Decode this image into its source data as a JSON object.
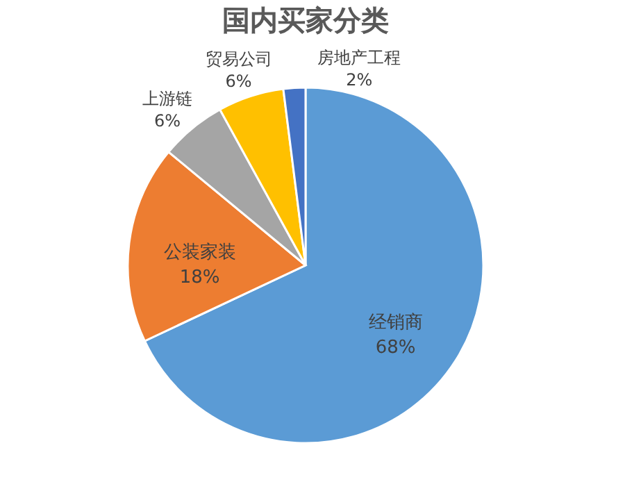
{
  "chart_data": {
    "type": "pie",
    "title": "国内买家分类",
    "categories": [
      "经销商",
      "公装家装",
      "上游链",
      "贸易公司",
      "房地产工程"
    ],
    "values": [
      68,
      18,
      6,
      6,
      2
    ],
    "value_labels": [
      "68%",
      "18%",
      "6%",
      "6%",
      "2%"
    ],
    "colors": [
      "#5b9bd5",
      "#ed7d31",
      "#a5a5a5",
      "#ffc000",
      "#4472c4"
    ],
    "legend": false
  }
}
